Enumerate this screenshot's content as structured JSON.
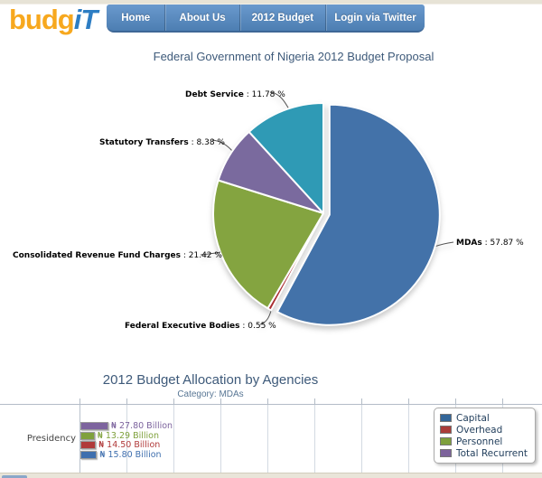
{
  "header": {
    "logo_part1": "budg",
    "logo_part2": "iT",
    "nav": [
      {
        "label": "Home"
      },
      {
        "label": "About Us"
      },
      {
        "label": "2012 Budget"
      },
      {
        "label": "Login via Twitter"
      }
    ]
  },
  "chart_data": [
    {
      "type": "pie",
      "title": "Federal Government of Nigeria 2012 Budget Proposal",
      "direction": "clockwise",
      "start_angle_deg": 0,
      "slices": [
        {
          "name": "MDAs",
          "value": 57.87,
          "pct_text": ": 57.87 %",
          "color": "#4372a9",
          "exploded": true
        },
        {
          "name": "Federal Executive Bodies",
          "value": 0.55,
          "pct_text": ": 0.55 %",
          "color": "#aa2e32",
          "exploded": false
        },
        {
          "name": "Consolidated Revenue Fund Charges",
          "value": 21.42,
          "pct_text": ": 21.42 %",
          "color": "#84a440",
          "exploded": false
        },
        {
          "name": "Statutory Transfers",
          "value": 8.38,
          "pct_text": ": 8.38 %",
          "color": "#7a6a9e",
          "exploded": false
        },
        {
          "name": "Debt Service",
          "value": 11.78,
          "pct_text": ": 11.78 %",
          "color": "#2f9ab5",
          "exploded": false
        }
      ]
    },
    {
      "type": "bar",
      "orientation": "horizontal",
      "title": "2012 Budget Allocation by Agencies",
      "subtitle": "Category: MDAs",
      "categories": [
        "Presidency"
      ],
      "series": [
        {
          "name": "Total Recurrent",
          "color": "#7d649e",
          "values": [
            27.8
          ],
          "value_labels": [
            "₦ 27.80 Billion"
          ]
        },
        {
          "name": "Personnel",
          "color": "#7fa13c",
          "values": [
            13.29
          ],
          "value_labels": [
            "₦ 13.29 Billion"
          ]
        },
        {
          "name": "Overhead",
          "color": "#b03a3a",
          "values": [
            14.5
          ],
          "value_labels": [
            "₦ 14.50 Billion"
          ]
        },
        {
          "name": "Capital",
          "color": "#3f6fae",
          "values": [
            15.8
          ],
          "value_labels": [
            "₦ 15.80 Billion"
          ]
        }
      ],
      "legend": [
        {
          "label": "Capital",
          "color": "#336699"
        },
        {
          "label": "Overhead",
          "color": "#aa3c39"
        },
        {
          "label": "Personnel",
          "color": "#7ea03c"
        },
        {
          "label": "Total Recurrent",
          "color": "#7d639b"
        }
      ],
      "unit": "₦ Billion",
      "axis": {
        "gridline_interval_billion": 50,
        "xlim": [
          0,
          500
        ]
      }
    }
  ]
}
